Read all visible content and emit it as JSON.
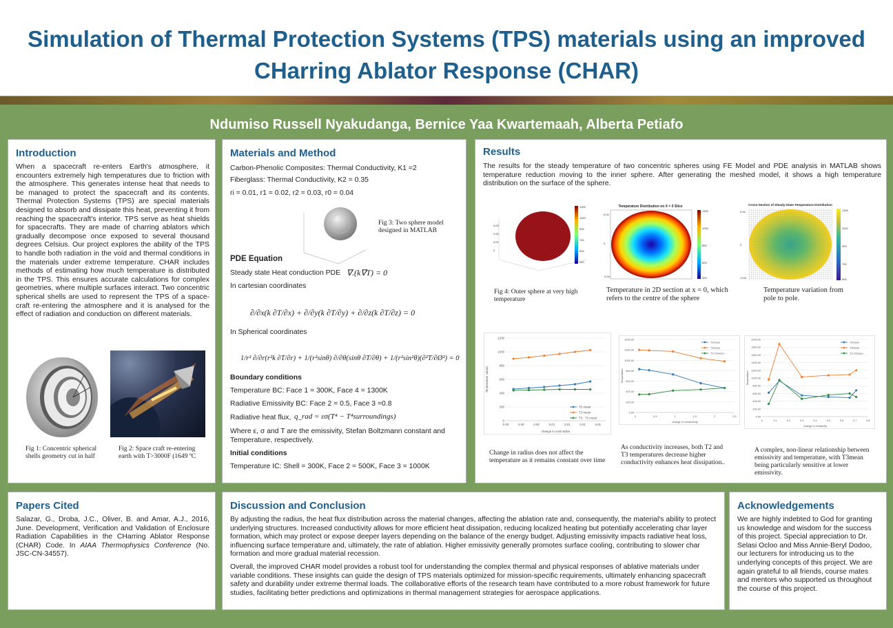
{
  "title": "Simulation of Thermal Protection Systems (TPS) materials using an improved CHarring Ablator Response (CHAR)",
  "authors": "Ndumiso Russell Nyakudanga, Bernice Yaa Kwartemaah, Alberta Petiafo",
  "intro": {
    "heading": "Introduction",
    "body": "When a spacecraft re-enters Earth's atmosphere, it encounters extremely high temperatures due to friction with the atmosphere. This generates intense heat that needs to be managed to protect the spacecraft and its contents. Thermal Protection Systems (TPS) are special materials designed to absorb and dissipate this heat, preventing it from reaching the spacecraft's interior. TPS serve as heat shields for spacecrafts. They are made of charring ablators which gradually decompose once exposed to several thousand degrees Celsius. Our project explores the ability of the TPS to handle both radiation in the void and thermal conditions in the materials under extreme temperature. CHAR includes methods of estimating how much temperature is distributed in the TPS. This ensures accurate calculations for complex geometries, where multiple surfaces interact. Two concentric spherical shells are used to represent the TPS of a space-craft re-entering the atmosphere and it is analysed for the effect of radiation and conduction on different materials.",
    "fig1_caption": "Fig 1: Concentric spherical shells geometry cut in half",
    "fig2_caption": "Fig 2: Space craft re-entering earth with T>3000F (1649 ºC"
  },
  "methods": {
    "heading": "Materials and Method",
    "line1": "Carbon-Phenolic Composites: Thermal Conductivity, K1 =2",
    "line2": "Fiberglass: Thermal Conductivity, K2 = 0.35",
    "line3": "ri = 0.01, r1 = 0.02, r2 = 0.03, r0 = 0.04",
    "fig3_caption": "Fig 3: Two sphere model designed in MATLAB",
    "pde_heading": "PDE Equation",
    "steady_label": "Steady state Heat conduction PDE",
    "steady_eq": "∇.(k∇T) = 0",
    "cartesian_label": "In cartesian coordinates",
    "cartesian_eq": "∂/∂x(k ∂T/∂x) + ∂/∂y(k ∂T/∂y) + ∂/∂z(k ∂T/∂z) = 0",
    "spherical_label": "In Spherical coordinates",
    "spherical_eq": "1/r² ∂/∂r(r²k ∂T/∂r) + 1/(r²sinθ) ∂/∂θ(sinθ ∂T/∂θ) + 1/(r²sin²θ)(∂²T/∂Ø²) = 0",
    "bc_heading": "Boundary conditions",
    "bc1": "Temperature BC: Face 1 = 300K, Face 4 = 1300K",
    "bc2": "Radiative Emissivity BC: Face 2 = 0.5, Face 3 =0.8",
    "bc3_label": "Radiative heat flux,",
    "bc3_eq": "q_rad = εσ(T⁴ − T⁴surroundings)",
    "where": "Where ε, σ and T are the emissivity, Stefan Boltzmann constant and Temperature, respectively.",
    "ic_heading": "Initial conditions",
    "ic1": "Temperature IC: Shell = 300K, Face 2 = 500K, Face 3 = 1000K"
  },
  "results": {
    "heading": "Results",
    "body": "The results for the steady temperature of two concentric spheres using FE Model and PDE analysis in MATLAB shows temperature reduction moving to the inner sphere. After generating the meshed model, it shows a high temperature distribution on the surface of the sphere.",
    "fig4_caption": "Fig 4: Outer sphere at very high temperature",
    "fig5_caption": "Temperature in 2D section at x = 0, which refers to the centre of the sphere",
    "fig6_caption": "Temperature variation from pole to pole.",
    "heat_title1": "Temperature Distribution on X = 0 Slice",
    "heat_title2": "Cross-Section of Steady-State Temperature Distribution",
    "chart1_caption": "Change in radius does not affect the temperature as it remains constant over time",
    "chart2_caption": "As conductivity increases, both T2 and T3 temperatures decrease higher conductivity enhances heat dissipation..",
    "chart3_caption": "A complex, non-linear relationship between emissivity and temperature, with T3mean being particularly sensitive at lower emissivity."
  },
  "papers": {
    "heading": "Papers Cited",
    "body_plain": "Salazar, G., Droba, J.C., Oliver, B. and Amar, A.J., 2016, June. Development, Verification and Validation of Enclosure Radiation Capabilities in the CHarring Ablator Response (CHAR) Code. In",
    "body_italic": "AIAA Thermophysics Conference",
    "body_tail": "(No. JSC-CN-34557)."
  },
  "discussion": {
    "heading": "Discussion and Conclusion",
    "p1": "By adjusting the radius, the heat flux distribution across the material changes, affecting the ablation rate and, consequently, the material's ability to protect underlying structures. Increased conductivity allows for more efficient heat dissipation, reducing localized heating but potentially accelerating char layer formation, which may protect or expose deeper layers depending on the balance of the energy budget. Adjusting emissivity impacts radiative heat loss, influencing surface temperature and, ultimately, the rate of ablation. Higher emissivity generally promotes surface cooling, contributing to slower char formation and more gradual material recession.",
    "p2": "Overall, the improved CHAR model provides a robust tool for understanding the complex thermal and physical responses of ablative materials under variable conditions. These insights can guide the design of TPS materials optimized for mission-specific requirements, ultimately enhancing spacecraft safety and durability under extreme thermal loads. The collaborative efforts of the research team have contributed to a more robust framework for future studies, facilitating better predictions and optimizations in thermal management strategies for aerospace applications."
  },
  "ack": {
    "heading": "Acknowledgements",
    "body": "We are highly indebted to God for granting us knowledge and wisdom for the success of this project. Special appreciation to Dr. Selasi Ocloo and Miss Annie-Beryl Dodoo, our lecturers for introducing us to the underlying concepts of this project. We are again grateful to all friends, course mates and mentors who supported us throughout the course of this project."
  },
  "colors": {
    "title": "#1f5f8e",
    "background": "#7a9e5e",
    "t2": "#2e75b6",
    "t3": "#ed7d31",
    "t3_t2": "#2e8b3e"
  },
  "chart_data": [
    {
      "type": "line",
      "title": "",
      "xlabel": "change in void radius",
      "ylabel": "Temperature values",
      "ylim": [
        0,
        1200
      ],
      "y_ticks": [
        "0",
        "200",
        "400",
        "600",
        "800",
        "1000",
        "1200"
      ],
      "x_ticks": [
        "0.00",
        "0.00",
        "0.00",
        "0.01",
        "0.01",
        "0.01",
        "0.01"
      ],
      "legend": "bottom-right",
      "x_index": [
        0,
        1,
        2,
        3,
        4,
        5
      ],
      "series": [
        {
          "name": "T2 mean",
          "values": [
            460,
            475,
            490,
            510,
            530,
            570
          ]
        },
        {
          "name": "T3 mean",
          "values": [
            900,
            920,
            945,
            970,
            1000,
            1025
          ]
        },
        {
          "name": "T3 - T2 mean",
          "values": [
            440,
            445,
            450,
            455,
            455,
            455
          ]
        }
      ]
    },
    {
      "type": "line",
      "title": "",
      "xlabel": "change in conductivity",
      "ylabel": "Temperature",
      "ylim": [
        0,
        1400
      ],
      "y_ticks": [
        "0.00",
        "200.00",
        "400.00",
        "600.00",
        "800.00",
        "1000.00",
        "1200.00",
        "1400.00"
      ],
      "x_ticks": [
        "0",
        "0.5",
        "1",
        "1.5",
        "2",
        "2.5"
      ],
      "x_range": [
        0,
        2.5
      ],
      "legend": "top-right",
      "x": [
        0.1,
        0.35,
        0.95,
        1.65,
        2.25
      ],
      "series": [
        {
          "name": "T2mean",
          "values": [
            830,
            810,
            730,
            560,
            470
          ]
        },
        {
          "name": "T3mean",
          "values": [
            1200,
            1190,
            1170,
            1040,
            980
          ]
        },
        {
          "name": "T3-T2mean",
          "values": [
            345,
            350,
            420,
            440,
            470
          ]
        }
      ]
    },
    {
      "type": "line",
      "title": "",
      "xlabel": "change in emissivity",
      "ylabel": "Temperature",
      "ylim": [
        0,
        2000
      ],
      "y_ticks": [
        "0.00",
        "200.00",
        "400.00",
        "600.00",
        "800.00",
        "1000.00",
        "1200.00",
        "1400.00",
        "1600.00",
        "1800.00",
        "2000.00"
      ],
      "x_ticks": [
        "0",
        "0.1",
        "0.2",
        "0.3",
        "0.4",
        "0.5",
        "0.6",
        "0.7",
        "0.8"
      ],
      "x_range": [
        0,
        0.8
      ],
      "legend": "top-right",
      "x": [
        0.05,
        0.13,
        0.3,
        0.5,
        0.66,
        0.71
      ],
      "series": [
        {
          "name": "T2mean",
          "values": [
            620,
            930,
            550,
            510,
            490,
            680
          ]
        },
        {
          "name": "T3mean",
          "values": [
            960,
            1880,
            1030,
            1070,
            1090,
            1200
          ]
        },
        {
          "name": "T3-T2mean",
          "values": [
            330,
            950,
            460,
            560,
            600,
            510
          ]
        }
      ]
    }
  ]
}
